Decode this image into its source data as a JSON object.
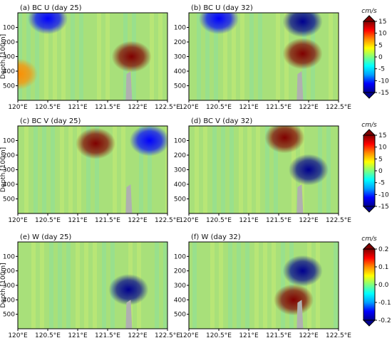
{
  "chart_data": [
    {
      "type": "heatmap",
      "title": "(a) BC U (day 25)",
      "ylabel": "Depth [100m]",
      "xticks": [
        "120°E",
        "120.5°E",
        "121°E",
        "121.5°E",
        "122°E",
        "122.5°E"
      ],
      "xlim": [
        120,
        122.5
      ],
      "yticks": [
        "100",
        "200",
        "300",
        "400",
        "500"
      ],
      "ylim": [
        600,
        0
      ],
      "features": [
        {
          "kind": "blob",
          "x": 120.5,
          "y": 40,
          "value": -12
        },
        {
          "kind": "blob",
          "x": 121.9,
          "y": 300,
          "value": 15
        },
        {
          "kind": "blob",
          "x": 120.0,
          "y": 420,
          "value": 8
        }
      ]
    },
    {
      "type": "heatmap",
      "title": "(b) BC U (day 32)",
      "ylabel": "",
      "xticks": [
        "120°E",
        "120.5°E",
        "121°E",
        "121.5°E",
        "122°E",
        "122.5°E"
      ],
      "xlim": [
        120,
        122.5
      ],
      "yticks": [
        "100",
        "200",
        "300",
        "400",
        "500"
      ],
      "ylim": [
        600,
        0
      ],
      "features": [
        {
          "kind": "blob",
          "x": 121.9,
          "y": 60,
          "value": -15
        },
        {
          "kind": "blob",
          "x": 121.9,
          "y": 280,
          "value": 15
        },
        {
          "kind": "blob",
          "x": 120.5,
          "y": 40,
          "value": -10
        }
      ]
    },
    {
      "type": "heatmap",
      "title": "(c) BC V (day 25)",
      "ylabel": "Depth [100m]",
      "xticks": [
        "120°E",
        "120.5°E",
        "121°E",
        "121.5°E",
        "122°E",
        "122.5°E"
      ],
      "xlim": [
        120,
        122.5
      ],
      "yticks": [
        "100",
        "200",
        "300",
        "400",
        "500"
      ],
      "ylim": [
        600,
        0
      ],
      "features": [
        {
          "kind": "blob",
          "x": 121.3,
          "y": 120,
          "value": 14
        },
        {
          "kind": "blob",
          "x": 122.2,
          "y": 100,
          "value": -13
        }
      ]
    },
    {
      "type": "heatmap",
      "title": "(d) BC V (day 32)",
      "ylabel": "",
      "xticks": [
        "120°E",
        "120.5°E",
        "121°E",
        "121.5°E",
        "122°E",
        "122.5°E"
      ],
      "xlim": [
        120,
        122.5
      ],
      "yticks": [
        "100",
        "200",
        "300",
        "400",
        "500"
      ],
      "ylim": [
        600,
        0
      ],
      "features": [
        {
          "kind": "blob",
          "x": 121.6,
          "y": 80,
          "value": 15
        },
        {
          "kind": "blob",
          "x": 122.0,
          "y": 300,
          "value": -14
        }
      ]
    },
    {
      "type": "heatmap",
      "title": "(e) W (day 25)",
      "ylabel": "Depth [100m]",
      "xticks": [
        "120°E",
        "120.5°E",
        "121°E",
        "121.5°E",
        "122°E",
        "122.5°E"
      ],
      "xlim": [
        120,
        122.5
      ],
      "yticks": [
        "100",
        "200",
        "300",
        "400",
        "500"
      ],
      "ylim": [
        600,
        0
      ],
      "features": [
        {
          "kind": "blob",
          "x": 121.85,
          "y": 330,
          "value": -0.2
        }
      ]
    },
    {
      "type": "heatmap",
      "title": "(f) W (day 32)",
      "ylabel": "",
      "xticks": [
        "120°E",
        "120.5°E",
        "121°E",
        "121.5°E",
        "122°E",
        "122.5°E"
      ],
      "xlim": [
        120,
        122.5
      ],
      "yticks": [
        "100",
        "200",
        "300",
        "400",
        "500"
      ],
      "ylim": [
        600,
        0
      ],
      "features": [
        {
          "kind": "blob",
          "x": 121.9,
          "y": 200,
          "value": -0.2
        },
        {
          "kind": "blob",
          "x": 121.75,
          "y": 400,
          "value": 0.2
        }
      ]
    }
  ],
  "colorbars": [
    {
      "unit": "cm/s",
      "ticks": [
        "15",
        "10",
        "5",
        "0",
        "-5",
        "-10",
        "-15"
      ],
      "range": [
        -15,
        15
      ]
    },
    {
      "unit": "cm/s",
      "ticks": [
        "15",
        "10",
        "5",
        "0",
        "-5",
        "-10",
        "-15"
      ],
      "range": [
        -15,
        15
      ]
    },
    {
      "unit": "cm/s",
      "ticks": [
        "0.2",
        "0.1",
        "0.0",
        "-0.1",
        "-0.2"
      ],
      "range": [
        -0.2,
        0.2
      ]
    }
  ],
  "colormap": [
    "#00008f",
    "#0000ff",
    "#00a0ff",
    "#00ffff",
    "#7fff7f",
    "#ffff00",
    "#ff8c00",
    "#ff0000",
    "#800000"
  ],
  "field_background": "#a8e07a",
  "topography_color": "#b0b0b0"
}
